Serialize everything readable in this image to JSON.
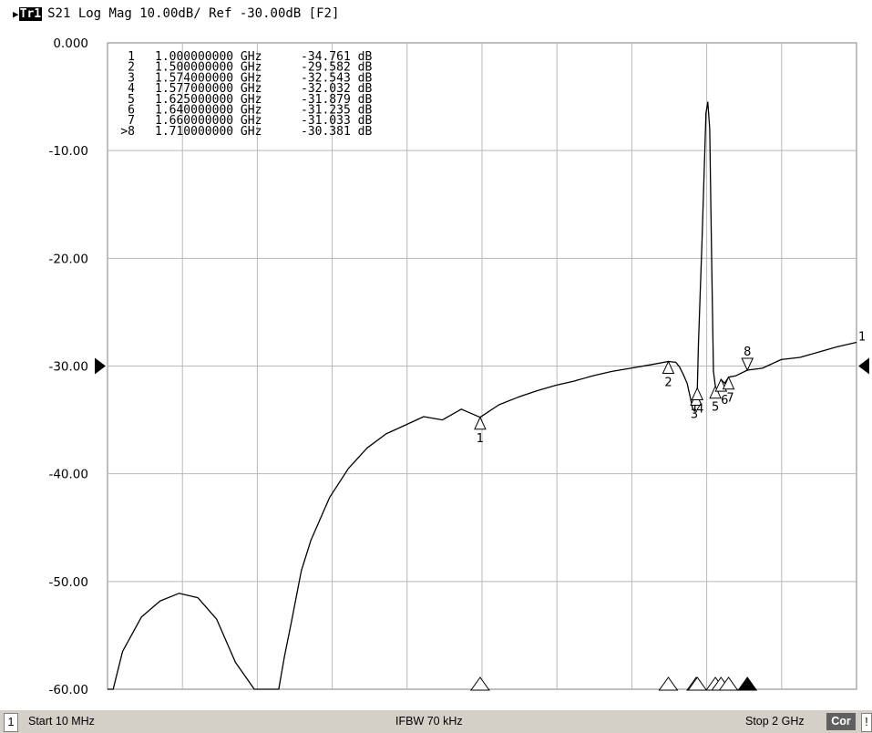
{
  "header": {
    "trace": "Tr1",
    "measurement": "S21 Log Mag 10.00dB/ Ref -30.00dB [F2]"
  },
  "status_bar": {
    "channel": "1",
    "start": "Start 10 MHz",
    "ifbw": "IFBW 70 kHz",
    "stop": "Stop 2 GHz",
    "correction": "Cor",
    "extra": "!"
  },
  "marker_table": [
    {
      "label": "1",
      "freq": "1.000000000 GHz",
      "value": "-34.761 dB"
    },
    {
      "label": "2",
      "freq": "1.500000000 GHz",
      "value": "-29.582 dB"
    },
    {
      "label": "3",
      "freq": "1.574000000 GHz",
      "value": "-32.543 dB"
    },
    {
      "label": "4",
      "freq": "1.577000000 GHz",
      "value": "-32.032 dB"
    },
    {
      "label": "5",
      "freq": "1.625000000 GHz",
      "value": "-31.879 dB"
    },
    {
      "label": "6",
      "freq": "1.640000000 GHz",
      "value": "-31.235 dB"
    },
    {
      "label": "7",
      "freq": "1.660000000 GHz",
      "value": "-31.033 dB"
    },
    {
      "label": ">8",
      "freq": "1.710000000 GHz",
      "value": "-30.381 dB"
    }
  ],
  "chart_data": {
    "type": "line",
    "xlim": [
      0.01,
      2.0
    ],
    "ylim": [
      -60,
      0
    ],
    "x_divisions": 10,
    "y_tick_labels": [
      "0.000",
      "-10.00",
      "-20.00",
      "-30.00",
      "-40.00",
      "-50.00",
      "-60.00"
    ],
    "y_tick_values": [
      0,
      -10,
      -20,
      -30,
      -40,
      -50,
      -60
    ],
    "reference_level": -30,
    "grid": true,
    "series": [
      {
        "x": [
          0.01,
          0.025,
          0.05,
          0.1,
          0.15,
          0.2,
          0.25,
          0.3,
          0.35,
          0.4,
          0.425,
          0.44,
          0.465,
          0.48,
          0.5,
          0.525,
          0.55,
          0.6,
          0.65,
          0.7,
          0.75,
          0.8,
          0.85,
          0.9,
          0.95,
          1.0,
          1.05,
          1.1,
          1.15,
          1.2,
          1.25,
          1.3,
          1.35,
          1.4,
          1.45,
          1.5,
          1.52,
          1.53,
          1.54,
          1.55,
          1.56,
          1.565,
          1.57,
          1.574,
          1.577,
          1.58,
          1.59,
          1.6,
          1.605,
          1.61,
          1.615,
          1.62,
          1.625,
          1.63,
          1.64,
          1.65,
          1.66,
          1.68,
          1.71,
          1.75,
          1.8,
          1.85,
          1.9,
          1.95,
          2.0
        ],
        "y": [
          -60,
          -60,
          -56.5,
          -53.3,
          -51.8,
          -51.1,
          -51.5,
          -53.5,
          -57.5,
          -60,
          -60,
          -60,
          -60,
          -57,
          -53.5,
          -49,
          -46.2,
          -42.2,
          -39.5,
          -37.6,
          -36.3,
          -35.5,
          -34.7,
          -35.0,
          -34.0,
          -34.76,
          -33.6,
          -32.9,
          -32.3,
          -31.8,
          -31.4,
          -30.9,
          -30.5,
          -30.2,
          -29.9,
          -29.58,
          -29.65,
          -30.1,
          -30.8,
          -31.6,
          -33.2,
          -34.0,
          -34.2,
          -32.54,
          -32.03,
          -28.0,
          -18.0,
          -6.5,
          -5.5,
          -8.0,
          -20.0,
          -30.5,
          -31.88,
          -32.5,
          -31.24,
          -31.6,
          -31.03,
          -30.9,
          -30.38,
          -30.2,
          -29.4,
          -29.2,
          -28.7,
          -28.2,
          -27.8
        ]
      }
    ],
    "markers": [
      {
        "label": "1",
        "x": 1.0,
        "y": -34.761
      },
      {
        "label": "2",
        "x": 1.5,
        "y": -29.582
      },
      {
        "label": "3",
        "x": 1.574,
        "y": -32.543
      },
      {
        "label": "4",
        "x": 1.577,
        "y": -32.032
      },
      {
        "label": "5",
        "x": 1.625,
        "y": -31.879
      },
      {
        "label": "6",
        "x": 1.64,
        "y": -31.235
      },
      {
        "label": "7",
        "x": 1.66,
        "y": -31.033
      },
      {
        "label": "8",
        "x": 1.71,
        "y": -30.381
      }
    ],
    "trace_end_label": "1",
    "active_marker": "8"
  }
}
